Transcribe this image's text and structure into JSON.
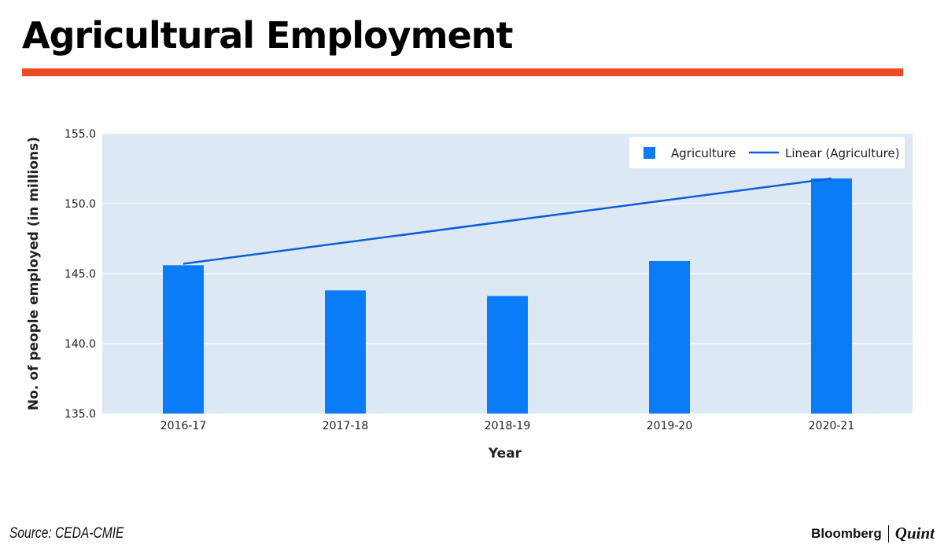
{
  "header": {
    "title": "Agricultural Employment"
  },
  "chart_data": {
    "type": "bar",
    "categories": [
      "2016-17",
      "2017-18",
      "2018-19",
      "2019-20",
      "2020-21"
    ],
    "series": [
      {
        "name": "Agriculture",
        "kind": "bar",
        "values": [
          145.6,
          143.8,
          143.4,
          145.9,
          151.8
        ]
      },
      {
        "name": "Linear (Agriculture)",
        "kind": "line",
        "start": 145.7,
        "end": 151.8
      }
    ],
    "xlabel": "Year",
    "ylabel": "No. of people employed (in millions)",
    "ylim": [
      135,
      155
    ],
    "yticks": [
      "135.0",
      "140.0",
      "145.0",
      "150.0",
      "155.0"
    ],
    "legend_position": "top-right",
    "colors": {
      "bar": "#0a7cf7",
      "trend": "#0a5fd8",
      "plot_bg": "#dde8f5",
      "grid": "#ffffff"
    }
  },
  "footer": {
    "source": "Source: CEDA-CMIE",
    "brand_primary": "Bloomberg",
    "brand_secondary": "Quint"
  }
}
